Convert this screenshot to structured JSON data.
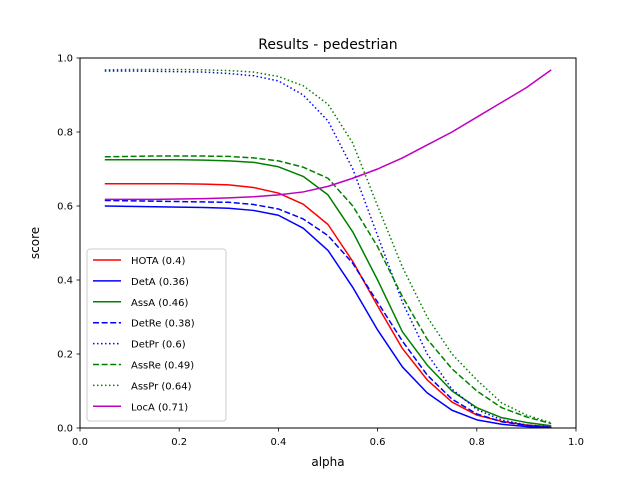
{
  "chart_data": {
    "type": "line",
    "title": "Results - pedestrian",
    "xlabel": "alpha",
    "ylabel": "score",
    "xlim": [
      0.0,
      1.0
    ],
    "ylim": [
      0.0,
      1.0
    ],
    "xticks": [
      "0.0",
      "0.2",
      "0.4",
      "0.6",
      "0.8",
      "1.0"
    ],
    "yticks": [
      "0.0",
      "0.2",
      "0.4",
      "0.6",
      "0.8",
      "1.0"
    ],
    "grid": false,
    "legend_position": "lower-left",
    "x": [
      0.05,
      0.1,
      0.15,
      0.2,
      0.25,
      0.3,
      0.35,
      0.4,
      0.45,
      0.5,
      0.55,
      0.6,
      0.65,
      0.7,
      0.75,
      0.8,
      0.85,
      0.9,
      0.95
    ],
    "series": [
      {
        "name": "HOTA (0.4)",
        "color": "#ff0000",
        "dash": "solid",
        "values": [
          0.66,
          0.66,
          0.66,
          0.66,
          0.659,
          0.657,
          0.65,
          0.635,
          0.605,
          0.55,
          0.45,
          0.33,
          0.215,
          0.13,
          0.07,
          0.035,
          0.018,
          0.008,
          0.003
        ]
      },
      {
        "name": "DetA (0.36)",
        "color": "#0000ff",
        "dash": "solid",
        "values": [
          0.6,
          0.599,
          0.598,
          0.597,
          0.596,
          0.594,
          0.588,
          0.575,
          0.54,
          0.48,
          0.38,
          0.265,
          0.165,
          0.095,
          0.048,
          0.022,
          0.01,
          0.004,
          0.001
        ]
      },
      {
        "name": "AssA (0.46)",
        "color": "#008000",
        "dash": "solid",
        "values": [
          0.725,
          0.725,
          0.725,
          0.725,
          0.724,
          0.722,
          0.718,
          0.706,
          0.68,
          0.63,
          0.53,
          0.4,
          0.26,
          0.17,
          0.1,
          0.055,
          0.028,
          0.015,
          0.006
        ]
      },
      {
        "name": "DetRe (0.38)",
        "color": "#0000ff",
        "dash": "dashed",
        "values": [
          0.615,
          0.614,
          0.613,
          0.612,
          0.611,
          0.61,
          0.604,
          0.592,
          0.565,
          0.52,
          0.445,
          0.34,
          0.235,
          0.143,
          0.078,
          0.038,
          0.017,
          0.007,
          0.002
        ]
      },
      {
        "name": "DetPr (0.6)",
        "color": "#0000ff",
        "dash": "dotted",
        "values": [
          0.965,
          0.965,
          0.964,
          0.963,
          0.962,
          0.958,
          0.952,
          0.938,
          0.9,
          0.83,
          0.7,
          0.52,
          0.34,
          0.2,
          0.105,
          0.05,
          0.022,
          0.008,
          0.003
        ]
      },
      {
        "name": "AssRe (0.49)",
        "color": "#008000",
        "dash": "dashed",
        "values": [
          0.733,
          0.734,
          0.735,
          0.735,
          0.735,
          0.734,
          0.73,
          0.722,
          0.705,
          0.675,
          0.6,
          0.49,
          0.355,
          0.24,
          0.16,
          0.1,
          0.055,
          0.03,
          0.012
        ]
      },
      {
        "name": "AssPr (0.64)",
        "color": "#008000",
        "dash": "dotted",
        "values": [
          0.968,
          0.969,
          0.969,
          0.969,
          0.968,
          0.966,
          0.962,
          0.95,
          0.925,
          0.875,
          0.77,
          0.6,
          0.435,
          0.3,
          0.2,
          0.13,
          0.068,
          0.035,
          0.014
        ]
      },
      {
        "name": "LocA (0.71)",
        "color": "#bf00bf",
        "dash": "solid",
        "values": [
          0.618,
          0.618,
          0.618,
          0.619,
          0.62,
          0.622,
          0.625,
          0.63,
          0.638,
          0.653,
          0.675,
          0.7,
          0.73,
          0.765,
          0.8,
          0.84,
          0.88,
          0.92,
          0.968
        ]
      }
    ]
  }
}
